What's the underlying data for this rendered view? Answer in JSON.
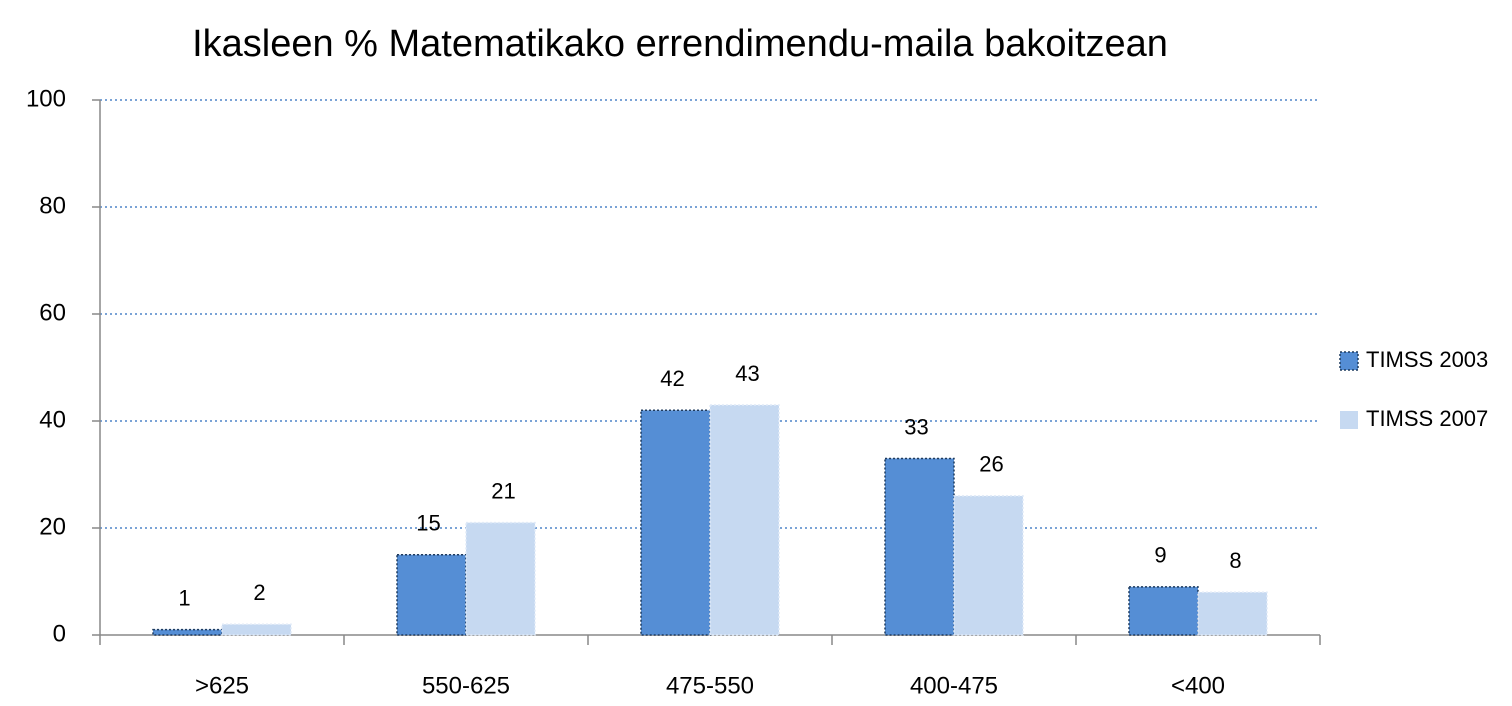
{
  "chart_data": {
    "type": "bar",
    "title": "Ikasleen % Matematikako errendimendu-maila bakoitzean",
    "categories": [
      ">625",
      "550-625",
      "475-550",
      "400-475",
      "<400"
    ],
    "series": [
      {
        "name": "TIMSS 2003",
        "color": "#558ed5",
        "values": [
          1,
          15,
          42,
          33,
          9
        ]
      },
      {
        "name": "TIMSS 2007",
        "color": "#c6d9f1",
        "values": [
          2,
          21,
          43,
          26,
          8
        ]
      }
    ],
    "ylim": [
      0,
      100
    ],
    "yticks": [
      0,
      20,
      40,
      60,
      80,
      100
    ],
    "grid": true,
    "legend": "right"
  }
}
